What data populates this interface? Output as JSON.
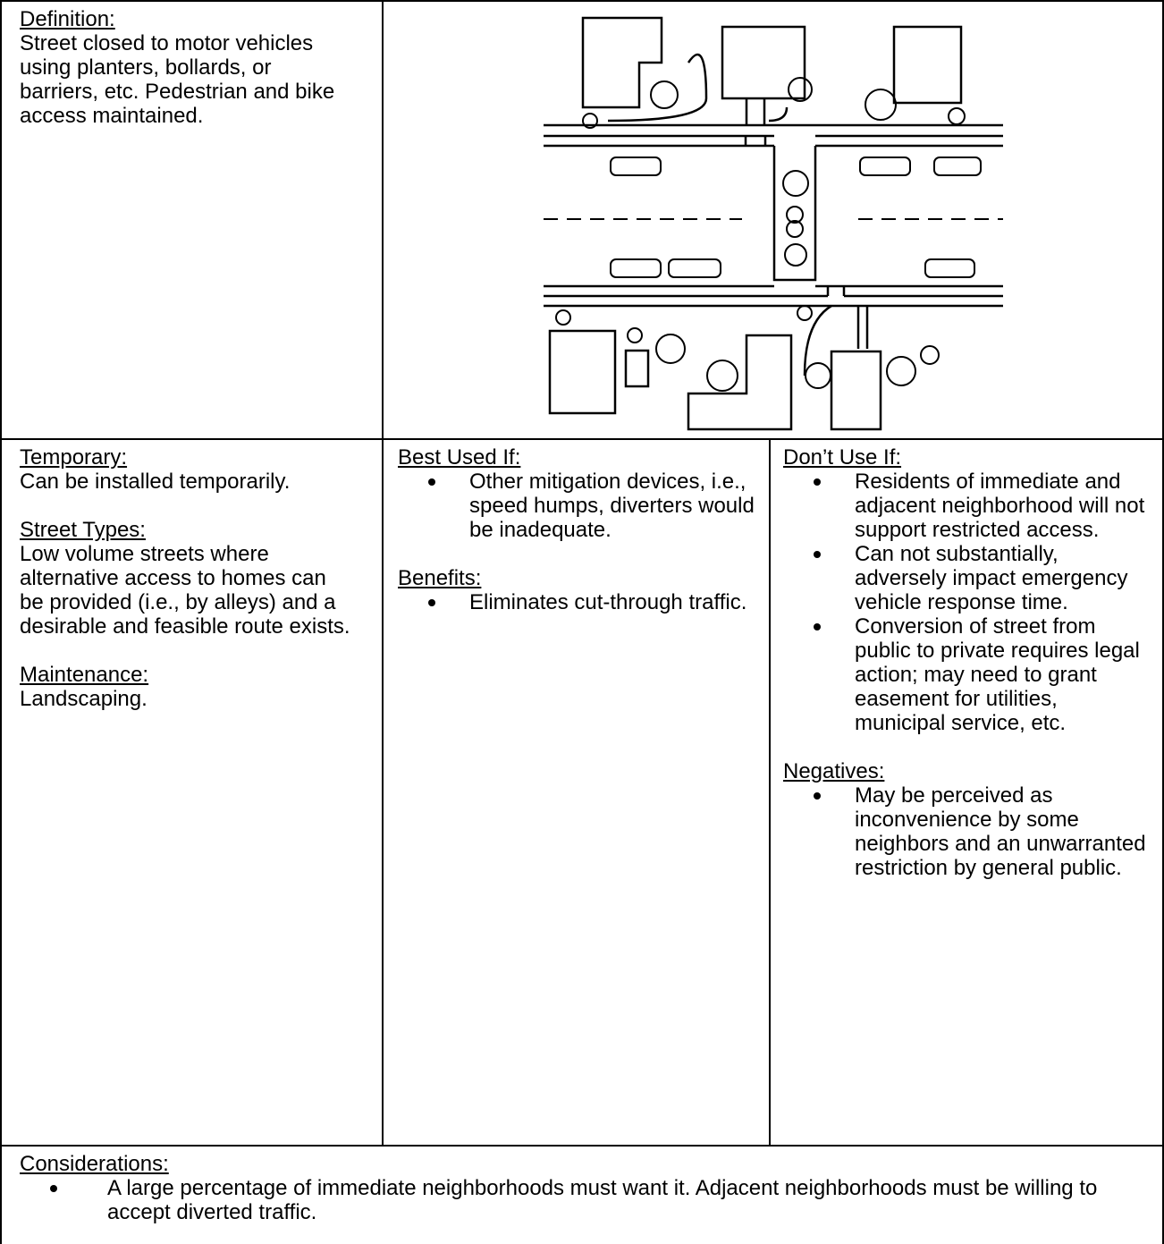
{
  "definition": {
    "heading": "Definition:",
    "text": "Street closed to motor vehicles using planters, bollards, or barriers, etc. Pedestrian and bike access maintained."
  },
  "temporary": {
    "heading": "Temporary:",
    "text": "Can be installed temporarily."
  },
  "street_types": {
    "heading": "Street Types:",
    "text": "Low volume streets where alternative access to homes can be provided (i.e., by alleys) and a desirable and feasible route exists."
  },
  "maintenance": {
    "heading": "Maintenance:",
    "text": "Landscaping."
  },
  "best_used_if": {
    "heading": "Best Used If:",
    "items": [
      "Other mitigation devices, i.e., speed humps, diverters would be inadequate."
    ]
  },
  "benefits": {
    "heading": "Benefits:",
    "items": [
      "Eliminates cut-through traffic."
    ]
  },
  "dont_use_if": {
    "heading": "Don’t Use If:",
    "items": [
      "Residents of immediate and adjacent neighborhood will not support restricted access.",
      "Can not substantially, adversely impact emergency vehicle response time.",
      "Conversion of street from public to private requires legal action; may need to grant easement for utilities, municipal service, etc."
    ]
  },
  "negatives": {
    "heading": "Negatives:",
    "items": [
      "May be perceived as inconvenience by some neighbors and an unwarranted restriction by general public."
    ]
  },
  "considerations": {
    "heading": "Considerations:",
    "items": [
      "A large percentage of immediate neighborhoods must want it. Adjacent neighborhoods must be willing to accept diverted traffic."
    ]
  }
}
